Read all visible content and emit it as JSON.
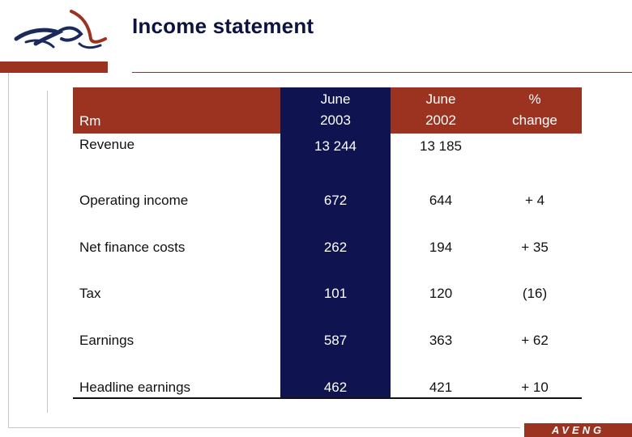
{
  "slide": {
    "title": "Income statement",
    "footer_brand": "AVENG"
  },
  "colors": {
    "brand_red": "#9b3320",
    "highlight_navy": "#0f1450",
    "title_navy": "#0d1340"
  },
  "icons": {
    "logo": "aveng-logo-icon"
  },
  "table": {
    "unit_label": "Rm",
    "columns": [
      {
        "line1": "June",
        "line2": "2003"
      },
      {
        "line1": "June",
        "line2": "2002"
      },
      {
        "line1": "%",
        "line2": "change"
      }
    ],
    "rows": [
      {
        "label": "Revenue",
        "values": [
          "13 244",
          "13 185",
          ""
        ]
      },
      {
        "label": "Operating income",
        "values": [
          "672",
          "644",
          "+ 4"
        ]
      },
      {
        "label": "Net finance costs",
        "values": [
          "262",
          "194",
          "+ 35"
        ]
      },
      {
        "label": "Tax",
        "values": [
          "101",
          "120",
          "(16)"
        ]
      },
      {
        "label": "Earnings",
        "values": [
          "587",
          "363",
          "+ 62"
        ]
      },
      {
        "label": "Headline earnings",
        "values": [
          "462",
          "421",
          "+ 10"
        ]
      }
    ]
  }
}
